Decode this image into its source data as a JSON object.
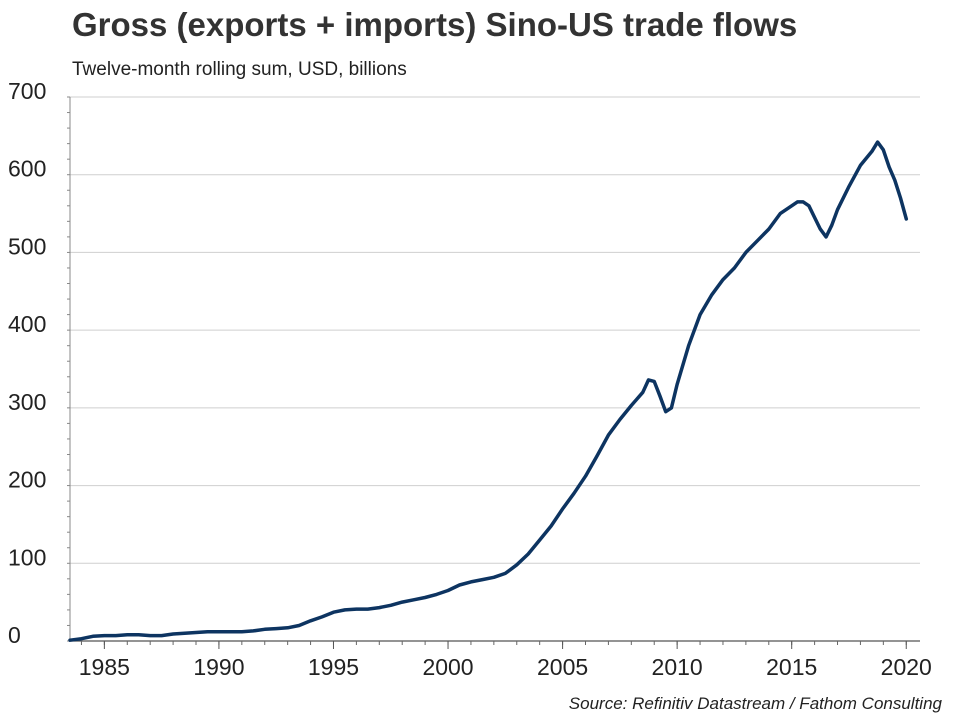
{
  "title": "Gross (exports + imports) Sino-US trade flows",
  "subtitle": "Twelve-month rolling sum, USD, billions",
  "source": "Source: Refinitiv Datastream / Fathom Consulting",
  "line_color": "#0d3461",
  "chart_data": {
    "type": "line",
    "title": "Gross (exports + imports) Sino-US trade flows",
    "subtitle": "Twelve-month rolling sum, USD, billions",
    "xlabel": "",
    "ylabel": "",
    "xlim": [
      1983.5,
      2020.6
    ],
    "ylim": [
      0,
      700
    ],
    "yticks": [
      0,
      100,
      200,
      300,
      400,
      500,
      600,
      700
    ],
    "xticks": [
      1985,
      1990,
      1995,
      2000,
      2005,
      2010,
      2015,
      2020
    ],
    "grid": "horizontal",
    "series": [
      {
        "x": [
          1983.5,
          1984.0,
          1984.5,
          1985.0,
          1985.5,
          1986.0,
          1986.5,
          1987.0,
          1987.5,
          1988.0,
          1988.5,
          1989.0,
          1989.5,
          1990.0,
          1990.5,
          1991.0,
          1991.5,
          1992.0,
          1992.5,
          1993.0,
          1993.5,
          1994.0,
          1994.5,
          1995.0,
          1995.5,
          1996.0,
          1996.5,
          1997.0,
          1997.5,
          1998.0,
          1998.5,
          1999.0,
          1999.5,
          2000.0,
          2000.5,
          2001.0,
          2001.5,
          2002.0,
          2002.5,
          2003.0,
          2003.5,
          2004.0,
          2004.5,
          2005.0,
          2005.5,
          2006.0,
          2006.5,
          2007.0,
          2007.5,
          2008.0,
          2008.5,
          2008.75,
          2009.0,
          2009.25,
          2009.5,
          2009.75,
          2010.0,
          2010.5,
          2011.0,
          2011.5,
          2012.0,
          2012.5,
          2013.0,
          2013.5,
          2014.0,
          2014.5,
          2015.0,
          2015.25,
          2015.5,
          2015.75,
          2016.0,
          2016.25,
          2016.5,
          2016.75,
          2017.0,
          2017.5,
          2018.0,
          2018.5,
          2018.75,
          2019.0,
          2019.25,
          2019.5,
          2019.75,
          2020.0
        ],
        "values": [
          1,
          3,
          6,
          7,
          7,
          8,
          8,
          7,
          7,
          9,
          10,
          11,
          12,
          12,
          12,
          12,
          13,
          15,
          16,
          17,
          20,
          26,
          31,
          37,
          40,
          41,
          41,
          43,
          46,
          50,
          53,
          56,
          60,
          65,
          72,
          76,
          79,
          82,
          87,
          98,
          112,
          130,
          148,
          170,
          190,
          212,
          238,
          265,
          285,
          303,
          320,
          336,
          334,
          315,
          295,
          300,
          330,
          380,
          420,
          445,
          465,
          480,
          500,
          515,
          530,
          550,
          560,
          565,
          565,
          560,
          545,
          530,
          520,
          535,
          555,
          585,
          612,
          630,
          642,
          632,
          610,
          593,
          570,
          543
        ]
      }
    ]
  }
}
